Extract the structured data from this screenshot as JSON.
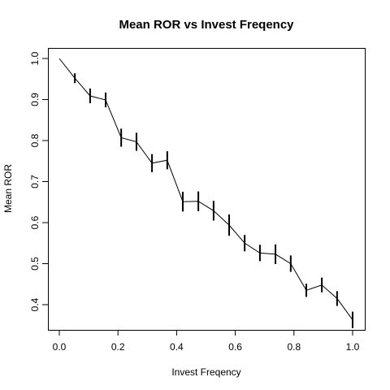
{
  "chart_data": {
    "type": "line",
    "title": "Mean ROR vs Invest Freqency",
    "xlabel": "Invest Freqency",
    "ylabel": "Mean ROR",
    "xlim": [
      0.0,
      1.0
    ],
    "ylim": [
      0.35,
      1.0
    ],
    "xticks": [
      "0.0",
      "0.2",
      "0.4",
      "0.6",
      "0.8",
      "1.0"
    ],
    "yticks": [
      "0.4",
      "0.5",
      "0.6",
      "0.7",
      "0.8",
      "0.9",
      "1.0"
    ],
    "grid": false,
    "series": [
      {
        "x": [
          0.0,
          0.053,
          0.105,
          0.158,
          0.211,
          0.263,
          0.316,
          0.368,
          0.421,
          0.474,
          0.526,
          0.579,
          0.632,
          0.684,
          0.737,
          0.789,
          0.842,
          0.895,
          0.947,
          1.0
        ],
        "y": [
          1.0,
          0.952,
          0.909,
          0.899,
          0.807,
          0.797,
          0.745,
          0.752,
          0.651,
          0.652,
          0.629,
          0.594,
          0.55,
          0.526,
          0.523,
          0.5,
          0.435,
          0.448,
          0.415,
          0.363
        ],
        "error": [
          0,
          0.012,
          0.018,
          0.018,
          0.022,
          0.022,
          0.022,
          0.022,
          0.024,
          0.024,
          0.024,
          0.026,
          0.02,
          0.02,
          0.024,
          0.02,
          0.016,
          0.018,
          0.018,
          0.02
        ]
      }
    ]
  }
}
